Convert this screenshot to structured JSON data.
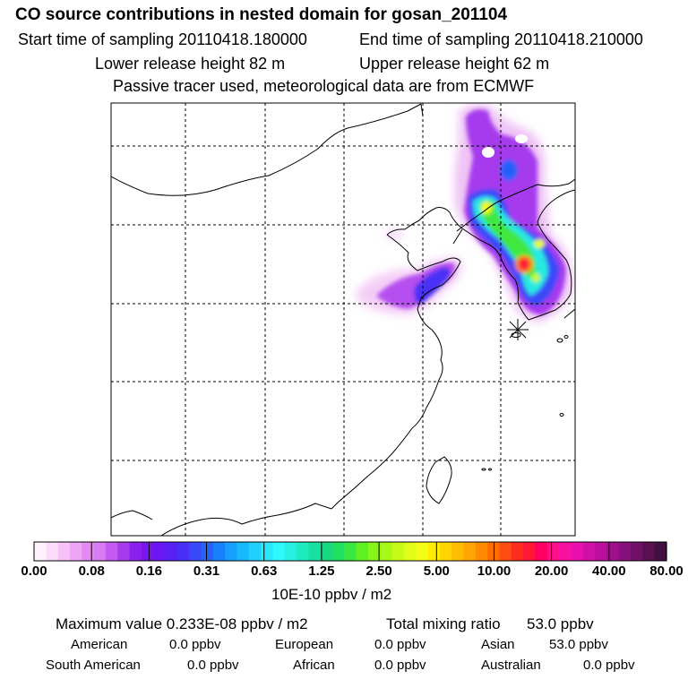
{
  "header": {
    "title": "CO  source contributions in nested domain for gosan_201104",
    "start_sampling": "Start time of sampling 20110418.180000",
    "end_sampling": "End time of sampling 20110418.210000",
    "lower_release": "Lower release height   82 m",
    "upper_release": "Upper release height   62 m",
    "tracer_note": "Passive tracer used, meteorological data are from ECMWF"
  },
  "colorbar": {
    "tick_labels": [
      "0.00",
      "0.08",
      "0.16",
      "0.31",
      "0.63",
      "1.25",
      "2.50",
      "5.00",
      "10.00",
      "20.00",
      "40.00",
      "80.00"
    ],
    "colors": [
      "#fff2fd",
      "#fbddfb",
      "#f6c2f8",
      "#efa4f5",
      "#e58af3",
      "#d77cf2",
      "#c45af0",
      "#a63bee",
      "#8a22ee",
      "#7a15f0",
      "#6a18f2",
      "#5820f4",
      "#4a30f6",
      "#3a48f8",
      "#2860fa",
      "#1880fb",
      "#14a0fc",
      "#18b8fd",
      "#20d0fe",
      "#2ae6ff",
      "#30f8ff",
      "#28f0e0",
      "#20eac0",
      "#18e0a0",
      "#18d880",
      "#20e060",
      "#38e840",
      "#60f020",
      "#88f418",
      "#a8f818",
      "#c8fa18",
      "#e0fc18",
      "#f4fe18",
      "#ffec00",
      "#ffd400",
      "#ffbc00",
      "#ffa400",
      "#ff8c00",
      "#ff6c00",
      "#ff4c10",
      "#ff2c20",
      "#ff1838",
      "#ff0060",
      "#ff1088",
      "#f810a0",
      "#e810b0",
      "#d010a8",
      "#b8109c",
      "#a0108c",
      "#88107c",
      "#701068",
      "#581050",
      "#401040"
    ],
    "unit_label": "10E-10 ppbv / m2"
  },
  "summary": {
    "max_value": "Maximum value  0.233E-08 ppbv / m2",
    "total_mixing_label": "Total mixing ratio",
    "total_mixing_value": "53.0 ppbv",
    "contributions": [
      {
        "name": "American",
        "value": "0.0 ppbv"
      },
      {
        "name": "European",
        "value": "0.0 ppbv"
      },
      {
        "name": "Asian",
        "value": "53.0 ppbv"
      },
      {
        "name": "South American",
        "value": "0.0 ppbv"
      },
      {
        "name": "African",
        "value": "0.0 ppbv"
      },
      {
        "name": "Australian",
        "value": "0.0 ppbv"
      }
    ]
  }
}
